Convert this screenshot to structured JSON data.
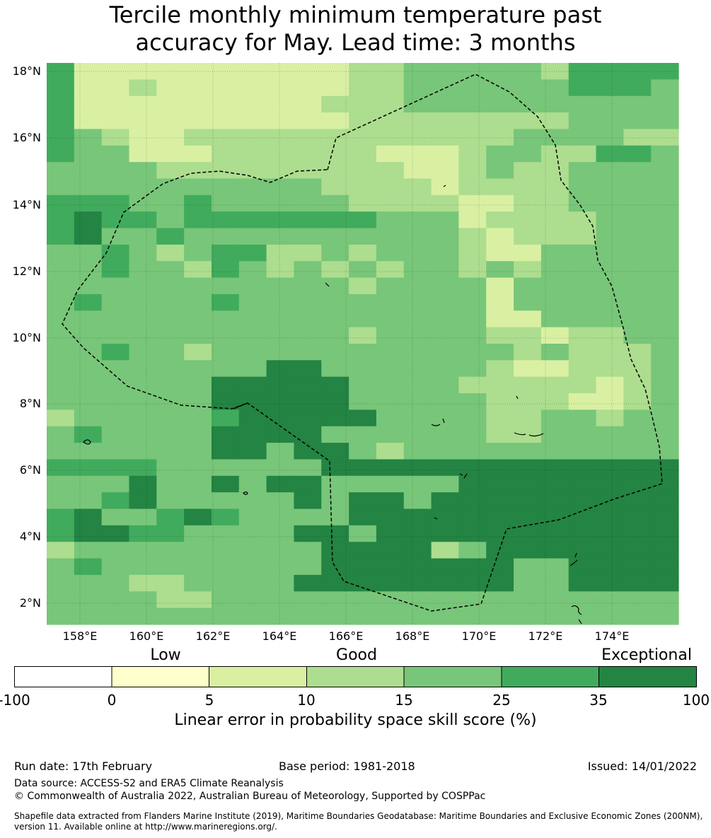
{
  "title_line1": "Tercile monthly minimum temperature past",
  "title_line2": "accuracy for May. Lead time: 3 months",
  "map": {
    "lat_labels": [
      "18°N",
      "16°N",
      "14°N",
      "12°N",
      "10°N",
      "8°N",
      "6°N",
      "4°N",
      "2°N"
    ],
    "lon_labels": [
      "158°E",
      "160°E",
      "162°E",
      "164°E",
      "166°E",
      "168°E",
      "170°E",
      "172°E",
      "174°E"
    ],
    "cell_levels": [
      "52222222222334444435555",
      "52232222222334444445554",
      "52222222223334444444444",
      "52222222222333333334444",
      "54322333333333333444433",
      "54422233333322234433554",
      "44443333333332234334444",
      "44444444443333233334444",
      "55544544444333322334444",
      "56554555555544423333444",
      "56445444444444432333444",
      "44543455334344432244444",
      "44544354343434434344444",
      "44444444444344442444444",
      "45444454444444442444444",
      "44444444444444442244444",
      "44444444444344443323344",
      "44544344444444444343334",
      "44444444664444443223334",
      "44444466666444433333234",
      "44444466666444443332234",
      "34444456666644443344344",
      "45444466664444443344444",
      "44444466466434444444444",
      "55554444446666666666666",
      "44464464664444466666666",
      "44564444464664666666666",
      "56445654444666666666666",
      "56655444466466666666666",
      "34444444446666346666666",
      "45444444446666666446666",
      "44433444466666666446666",
      "44443344444444444444444",
      "44444444444444444444444"
    ],
    "colors": {
      "neg": "#ffffff",
      "0-5": "#ffffcc",
      "5-10": "#d9f0a3",
      "10-15": "#addd8e",
      "15-25": "#78c679",
      "25-35": "#41ab5d",
      "35-100": "#238443",
      "boundary": "#000000"
    }
  },
  "legend": {
    "categories": [
      "Low",
      "Good",
      "Exceptional"
    ],
    "ticks": [
      "-100",
      "0",
      "5",
      "10",
      "15",
      "25",
      "35",
      "100"
    ],
    "label": "Linear error in probability space skill score (%)"
  },
  "footer": {
    "run_date": "Run date: 17th February",
    "base_period": "Base period: 1981-2018",
    "issued": "Issued: 14/01/2022",
    "data_source": "Data source: ACCESS-S2 and ERA5 Climate Reanalysis",
    "copyright": "© Commonwealth of Australia 2022, Australian Bureau of Meteorology, Supported by COSPPac",
    "shapefile_1": "Shapefile data extracted from Flanders Marine Institute (2019), Maritime Boundaries Geodatabase: Maritime Boundaries and Exclusive Economic Zones (200NM),",
    "shapefile_2": "version 11. Available online at http://www.marineregions.org/."
  }
}
